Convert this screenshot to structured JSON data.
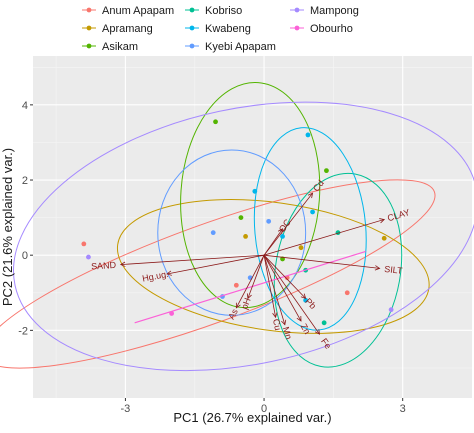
{
  "chart_data": {
    "type": "scatter",
    "subtype": "pca-biplot",
    "xlabel": "PC1 (26.7% explained var.)",
    "ylabel": "PC2 (21.6% explained var.)",
    "xlim": [
      -5.0,
      4.5
    ],
    "ylim": [
      -3.8,
      5.3
    ],
    "x_ticks": [
      -3,
      0,
      3
    ],
    "y_ticks": [
      -2,
      0,
      2,
      4
    ],
    "x_tick_labels": [
      "-3",
      "0",
      "3"
    ],
    "y_tick_labels": [
      "-2",
      "0",
      "2",
      "4"
    ],
    "grid": true,
    "background": "#ebebeb",
    "legend_position": "top",
    "series": [
      {
        "name": "Anum Apapam",
        "color": "#f8766d",
        "points": [
          [
            -3.9,
            0.3
          ],
          [
            1.8,
            -1.0
          ],
          [
            0.5,
            -0.6
          ],
          [
            -0.6,
            -0.8
          ]
        ],
        "ellipse": {
          "center": [
            -1.2,
            -0.5
          ],
          "rx": 5.2,
          "ry": 1.3,
          "angle": -20
        }
      },
      {
        "name": "Apramang",
        "color": "#c49a00",
        "points": [
          [
            2.6,
            0.45
          ],
          [
            0.8,
            0.2
          ],
          [
            -0.4,
            0.5
          ]
        ],
        "ellipse": {
          "center": [
            0.2,
            -0.3
          ],
          "rx": 3.4,
          "ry": 1.7,
          "angle": 8
        }
      },
      {
        "name": "Asikam",
        "color": "#53b400",
        "points": [
          [
            -1.05,
            3.55
          ],
          [
            1.35,
            2.25
          ],
          [
            -0.5,
            1.0
          ],
          [
            0.4,
            -0.1
          ]
        ],
        "ellipse": {
          "center": [
            -0.3,
            1.6
          ],
          "rx": 1.5,
          "ry": 3.0,
          "angle": 4
        }
      },
      {
        "name": "Kobriso",
        "color": "#00c094",
        "points": [
          [
            1.6,
            0.6
          ],
          [
            0.9,
            -0.4
          ],
          [
            1.3,
            -1.8
          ]
        ],
        "ellipse": {
          "center": [
            1.6,
            -0.4
          ],
          "rx": 1.35,
          "ry": 2.6,
          "angle": 10
        }
      },
      {
        "name": "Kwabeng",
        "color": "#00b6eb",
        "points": [
          [
            0.95,
            3.2
          ],
          [
            1.05,
            1.15
          ],
          [
            0.4,
            0.5
          ],
          [
            0.9,
            -1.2
          ],
          [
            -0.2,
            1.7
          ]
        ],
        "ellipse": {
          "center": [
            1.0,
            0.7
          ],
          "rx": 1.2,
          "ry": 2.7,
          "angle": -5
        }
      },
      {
        "name": "Kyebi Apapam",
        "color": "#619cff",
        "points": [
          [
            -1.1,
            0.6
          ],
          [
            -0.9,
            -1.1
          ],
          [
            -0.3,
            -0.6
          ],
          [
            0.1,
            0.9
          ]
        ],
        "ellipse": {
          "center": [
            -0.7,
            0.6
          ],
          "rx": 1.6,
          "ry": 2.2,
          "angle": 0
        }
      },
      {
        "name": "Mampong",
        "color": "#a58aff",
        "points": [
          [
            -3.8,
            -0.05
          ],
          [
            2.75,
            -1.45
          ]
        ],
        "ellipse": {
          "center": [
            -0.4,
            0.5
          ],
          "rx": 5.1,
          "ry": 3.4,
          "angle": -12
        }
      },
      {
        "name": "Obourho",
        "color": "#fb61d7",
        "points": [
          [
            -2.0,
            -1.55
          ]
        ],
        "ellipse": null
      }
    ],
    "loadings": [
      {
        "label": "Cd",
        "x": 1.05,
        "y": 1.65
      },
      {
        "label": "CLAY",
        "x": 2.6,
        "y": 0.95
      },
      {
        "label": "SILT",
        "x": 2.5,
        "y": -0.35
      },
      {
        "label": "SAND",
        "x": -3.1,
        "y": -0.25
      },
      {
        "label": "Hg.ug.",
        "x": -2.1,
        "y": -0.5
      },
      {
        "label": "Pb",
        "x": 0.9,
        "y": -1.15
      },
      {
        "label": "Zn",
        "x": 0.8,
        "y": -1.75
      },
      {
        "label": "As",
        "x": -0.6,
        "y": -1.4
      },
      {
        "label": "Fe",
        "x": 1.2,
        "y": -2.1
      },
      {
        "label": "Mn",
        "x": 0.45,
        "y": -1.85
      },
      {
        "label": "Cu",
        "x": 0.25,
        "y": -1.65
      },
      {
        "label": "pH",
        "x": -0.35,
        "y": -1.15
      },
      {
        "label": "OC",
        "x": 0.4,
        "y": 0.7
      }
    ],
    "extra_segment": {
      "from": [
        -2.8,
        -1.8
      ],
      "to": [
        2.2,
        0.1
      ],
      "color": "#fb61d7"
    }
  }
}
